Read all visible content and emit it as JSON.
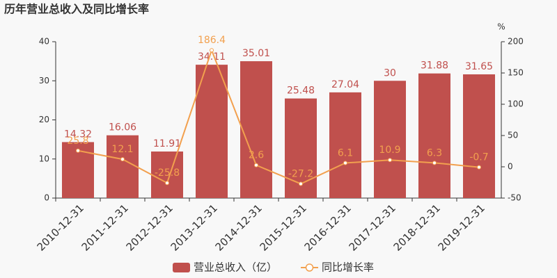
{
  "chart_data": {
    "type": "bar",
    "title": "历年营业总收入及同比增长率",
    "y2label": "%",
    "categories": [
      "2010-12-31",
      "2011-12-31",
      "2012-12-31",
      "2013-12-31",
      "2014-12-31",
      "2015-12-31",
      "2016-12-31",
      "2017-12-31",
      "2018-12-31",
      "2019-12-31"
    ],
    "series": [
      {
        "name": "营业总收入（亿）",
        "type": "bar",
        "color": "#c0504d",
        "values": [
          14.32,
          16.06,
          11.91,
          34.11,
          35.01,
          25.48,
          27.04,
          30,
          31.88,
          31.65
        ]
      },
      {
        "name": "同比增长率",
        "type": "line",
        "axis": "y2",
        "color": "#f2a04e",
        "values": [
          25.8,
          12.1,
          -25.8,
          186.4,
          2.6,
          -27.2,
          6.1,
          10.9,
          6.3,
          -0.7
        ]
      }
    ],
    "ylim": [
      0,
      40
    ],
    "yticks": [
      0,
      10,
      20,
      30,
      40
    ],
    "y2lim": [
      -50,
      200
    ],
    "y2ticks": [
      -50,
      0,
      50,
      100,
      150,
      200
    ]
  }
}
